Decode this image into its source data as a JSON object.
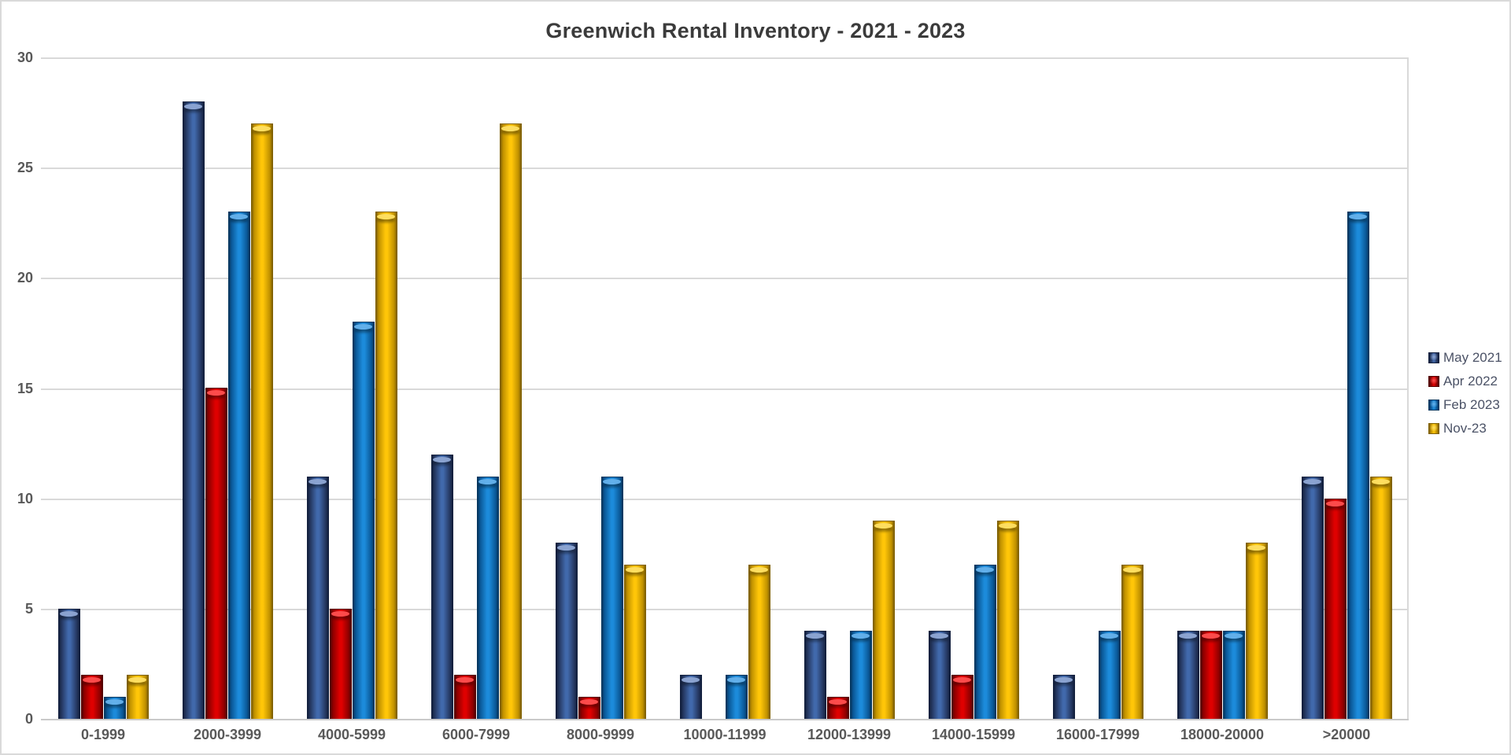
{
  "title": "Greenwich Rental Inventory - 2021 - 2023",
  "chart_data": {
    "type": "bar",
    "title": "Greenwich Rental Inventory - 2021 - 2023",
    "categories": [
      "0-1999",
      "2000-3999",
      "4000-5999",
      "6000-7999",
      "8000-9999",
      "10000-11999",
      "12000-13999",
      "14000-15999",
      "16000-17999",
      "18000-20000",
      ">20000"
    ],
    "series": [
      {
        "name": "May 2021",
        "values": [
          5,
          28,
          11,
          12,
          8,
          2,
          4,
          4,
          2,
          4,
          11
        ],
        "color": "#2E4D8C",
        "color_edge": "#121F3D",
        "color_dark": "#24365E",
        "color_light": "#4169AC",
        "color_highlight": "#8FA7D4"
      },
      {
        "name": "Apr 2022",
        "values": [
          2,
          15,
          5,
          2,
          1,
          0,
          1,
          2,
          0,
          4,
          10
        ],
        "color": "#DF0000",
        "color_edge": "#520000",
        "color_dark": "#8E0000",
        "color_light": "#DF0000",
        "color_highlight": "#FF5050"
      },
      {
        "name": "Feb 2023",
        "values": [
          1,
          23,
          18,
          11,
          11,
          2,
          4,
          7,
          4,
          4,
          23
        ],
        "color": "#1C8BDB",
        "color_edge": "#05365E",
        "color_dark": "#0A5796",
        "color_light": "#1C8BDB",
        "color_highlight": "#66B2EC"
      },
      {
        "name": "Nov-23",
        "values": [
          2,
          27,
          23,
          27,
          7,
          7,
          9,
          9,
          7,
          8,
          11
        ],
        "color": "#FFC608",
        "color_edge": "#7F6000",
        "color_dark": "#BF9000",
        "color_light": "#FFC608",
        "color_highlight": "#FFE064"
      }
    ],
    "ylim": [
      0,
      30
    ],
    "yticks": [
      0,
      5,
      10,
      15,
      20,
      25,
      30
    ],
    "xlabel": "",
    "ylabel": "",
    "grid": "horizontal",
    "legend_position": "right",
    "gridline_color": "#D9D9D9",
    "axis_text_color": "#595959",
    "title_color": "#3B3B3B"
  }
}
